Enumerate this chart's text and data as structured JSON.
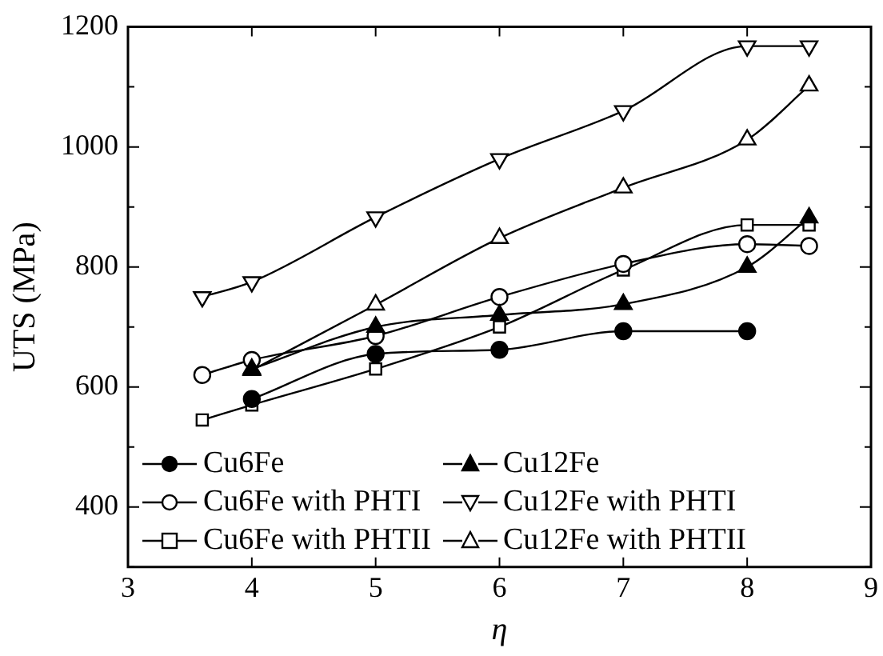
{
  "chart_data": {
    "type": "line",
    "xlabel": "η",
    "ylabel": "UTS (MPa)",
    "xlim": [
      3,
      9
    ],
    "xticks": [
      3,
      4,
      5,
      6,
      7,
      8,
      9
    ],
    "ylim": [
      300,
      1200
    ],
    "yticks": [
      {
        "value": 300,
        "label": null
      },
      400,
      {
        "value": 500,
        "label": null
      },
      600,
      {
        "value": 700,
        "label": null
      },
      800,
      {
        "value": 900,
        "label": null
      },
      1000,
      {
        "value": 1100,
        "label": null
      },
      1200
    ],
    "grid": false,
    "legend": "bottom",
    "line_style": "solid",
    "series": [
      {
        "name": "Cu6Fe",
        "color": "#000000",
        "marker": "circle",
        "colors": [
          "#000000",
          "#000000",
          "#000000",
          "#000000",
          "#000000"
        ],
        "x": [
          4,
          5,
          6,
          7,
          8
        ],
        "values": [
          580,
          655,
          662,
          693,
          693
        ]
      },
      {
        "name": "Cu12Fe",
        "color": "#000000",
        "marker": "triangle",
        "colors": [
          "#000000",
          "#000000",
          "#000000",
          "#000000",
          "#000000",
          "#000000"
        ],
        "x": [
          4,
          5,
          6,
          7,
          8,
          8.5
        ],
        "values": [
          630,
          700,
          720,
          738,
          800,
          882
        ]
      },
      {
        "name": "Cu6Fe with PHTI",
        "color": "#000000",
        "marker": "circle",
        "colors": [
          "#ffffff",
          "#ffffff",
          "#ffffff",
          "#ffffff",
          "#ffffff",
          "#ffffff",
          "#ffffff"
        ],
        "x": [
          3.6,
          4,
          5,
          6,
          7,
          8,
          8.5
        ],
        "values": [
          620,
          645,
          685,
          750,
          805,
          838,
          835
        ]
      },
      {
        "name": "Cu12Fe with PHTI",
        "color": "#000000",
        "marker": "triangle-down",
        "colors": [
          "#ffffff",
          "#ffffff",
          "#ffffff",
          "#ffffff",
          "#ffffff",
          "#ffffff",
          "#ffffff"
        ],
        "x": [
          3.6,
          4,
          5,
          6,
          7,
          8,
          8.5
        ],
        "values": [
          750,
          775,
          883,
          980,
          1060,
          1168,
          1168
        ]
      },
      {
        "name": "Cu6Fe with PHTII",
        "color": "#000000",
        "marker": "square",
        "colors": [
          "#ffffff",
          "#ffffff",
          "#ffffff",
          "#ffffff",
          "#ffffff",
          "#ffffff",
          "#ffffff"
        ],
        "x": [
          3.6,
          4,
          5,
          6,
          7,
          8,
          8.5
        ],
        "values": [
          545,
          570,
          630,
          700,
          795,
          870,
          870
        ]
      },
      {
        "name": "Cu12Fe with PHTII",
        "color": "#000000",
        "marker": "triangle",
        "colors": [
          "#ffffff",
          "#ffffff",
          "#ffffff",
          "#ffffff",
          "#ffffff",
          "#ffffff"
        ],
        "x": [
          4,
          5,
          6,
          7,
          8,
          8.5
        ],
        "values": [
          628,
          737,
          848,
          932,
          1012,
          1102
        ]
      }
    ]
  }
}
